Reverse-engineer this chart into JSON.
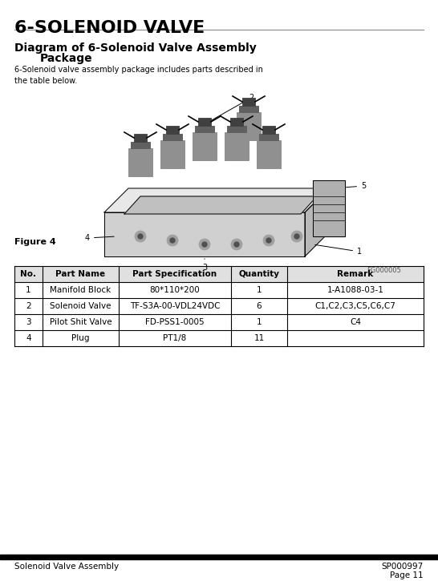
{
  "page_title": "6-SOLENOID VALVE",
  "section_title": "Diagram of 6-Solenoid Valve Assembly\n    Package",
  "description": "6-Solenoid valve assembly package includes parts described in\nthe table below.",
  "figure_label": "Figure 4",
  "figure_id": "FG000005",
  "table_headers": [
    "No.",
    "Part Name",
    "Part Specification",
    "Quantity",
    "Remark"
  ],
  "table_rows": [
    [
      "1",
      "Manifold Block",
      "80*110*200",
      "1",
      "1-A1088-03-1"
    ],
    [
      "2",
      "Solenoid Valve",
      "TF-S3A-00-VDL24VDC",
      "6",
      "C1,C2,C3,C5,C6,C7"
    ],
    [
      "3",
      "Pilot Shit Valve",
      "FD-PSS1-0005",
      "1",
      "C4"
    ],
    [
      "4",
      "Plug",
      "PT1/8",
      "11",
      ""
    ]
  ],
  "footer_left": "Solenoid Valve Assembly",
  "footer_right": "SP000997\nPage 11",
  "bg_color": "#ffffff",
  "text_color": "#000000",
  "header_bg": "#ffffff",
  "border_color": "#000000"
}
